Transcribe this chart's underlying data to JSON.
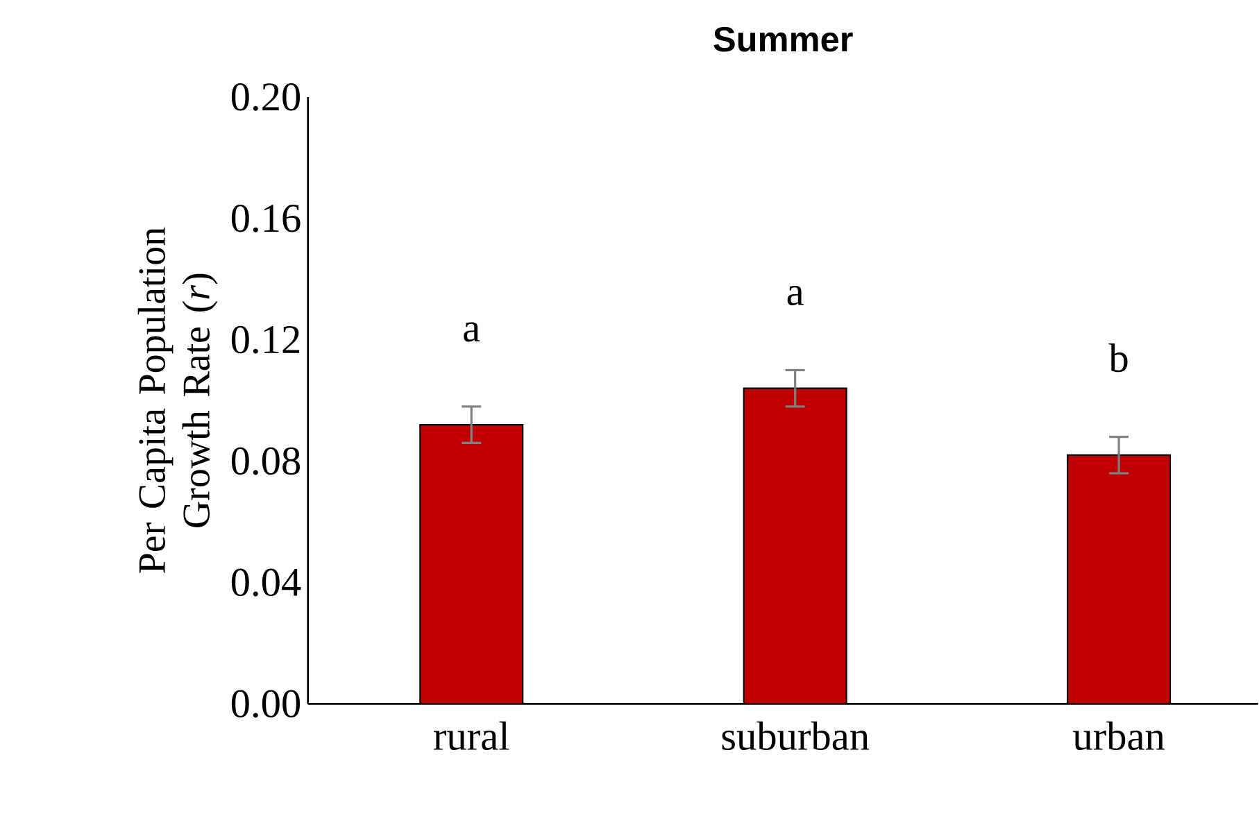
{
  "chart_data": {
    "type": "bar",
    "title": "Summer",
    "ylabel": "Per Capita Population Growth Rate (*r*)",
    "categories": [
      "rural",
      "suburban",
      "urban"
    ],
    "values": [
      0.092,
      0.104,
      0.082
    ],
    "errors": [
      0.006,
      0.006,
      0.006
    ],
    "color": "#c00000",
    "ylim": [
      0,
      0.2
    ],
    "yticks": [
      {
        "value": 0,
        "label": "0.00"
      },
      {
        "value": 0.04,
        "label": "0.04"
      },
      {
        "value": 0.08,
        "label": "0.08"
      },
      {
        "value": 0.12,
        "label": "0.12"
      },
      {
        "value": 0.16,
        "label": "0.16"
      },
      {
        "value": 0.2,
        "label": "0.20"
      }
    ],
    "annotations": [
      "a",
      "a",
      "b"
    ],
    "grid": false
  }
}
